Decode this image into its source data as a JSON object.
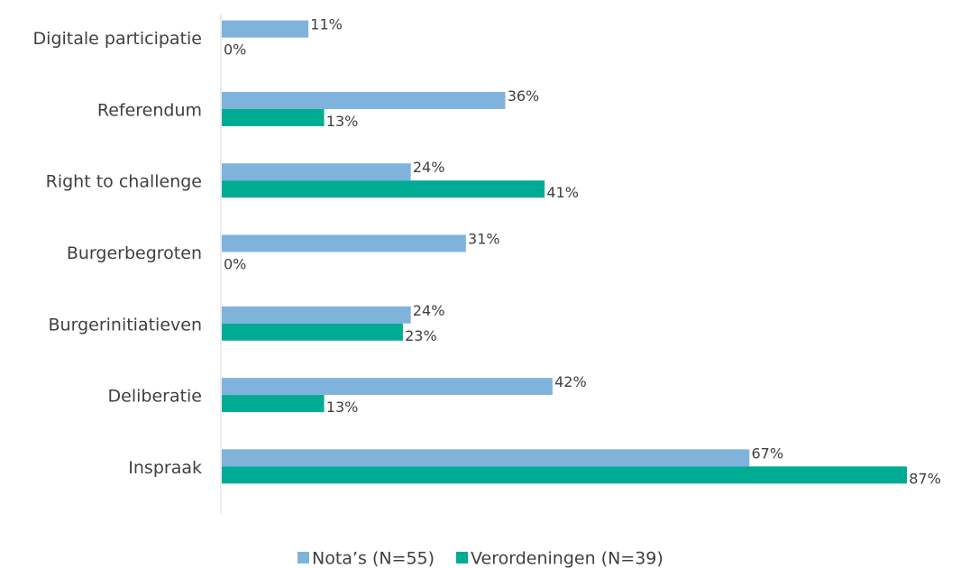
{
  "chart_data": {
    "type": "hbar",
    "categories": [
      "Digitale participatie",
      "Referendum",
      "Right to challenge",
      "Burgerbegroten",
      "Burgerinitiatieven",
      "Deliberatie",
      "Inspraak"
    ],
    "series": [
      {
        "name": "Nota’s (N=55)",
        "color": "#7fb3dc",
        "values": [
          11,
          36,
          24,
          31,
          24,
          42,
          67
        ],
        "value_labels": [
          "11%",
          "36%",
          "24%",
          "31%",
          "24%",
          "42%",
          "67%"
        ]
      },
      {
        "name": "Verordeningen (N=39)",
        "color": "#00ab94",
        "values": [
          0,
          13,
          41,
          0,
          23,
          13,
          87
        ],
        "value_labels": [
          "0%",
          "13%",
          "41%",
          "0%",
          "23%",
          "13%",
          "87%"
        ]
      }
    ],
    "legend": "bottom"
  }
}
